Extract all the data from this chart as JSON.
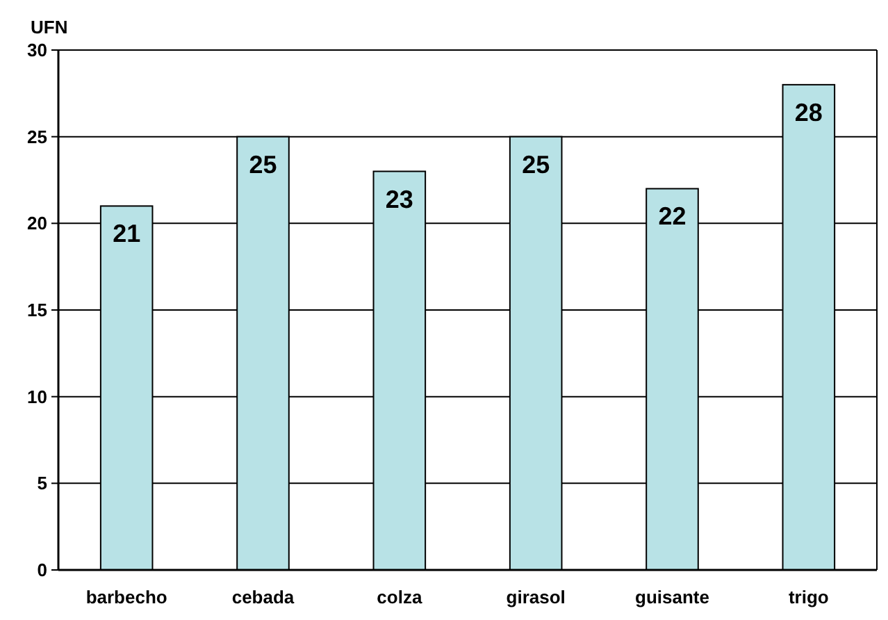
{
  "chart_data": {
    "type": "bar",
    "ylabel": "UFN",
    "categories": [
      "barbecho",
      "cebada",
      "colza",
      "girasol",
      "guisante",
      "trigo"
    ],
    "values": [
      21,
      25,
      23,
      25,
      22,
      28
    ],
    "color": "#b8e2e6",
    "ylim": [
      0,
      30
    ],
    "yticks": [
      0,
      5,
      10,
      15,
      20,
      25,
      30
    ],
    "grid": "y",
    "data_labels": true
  }
}
